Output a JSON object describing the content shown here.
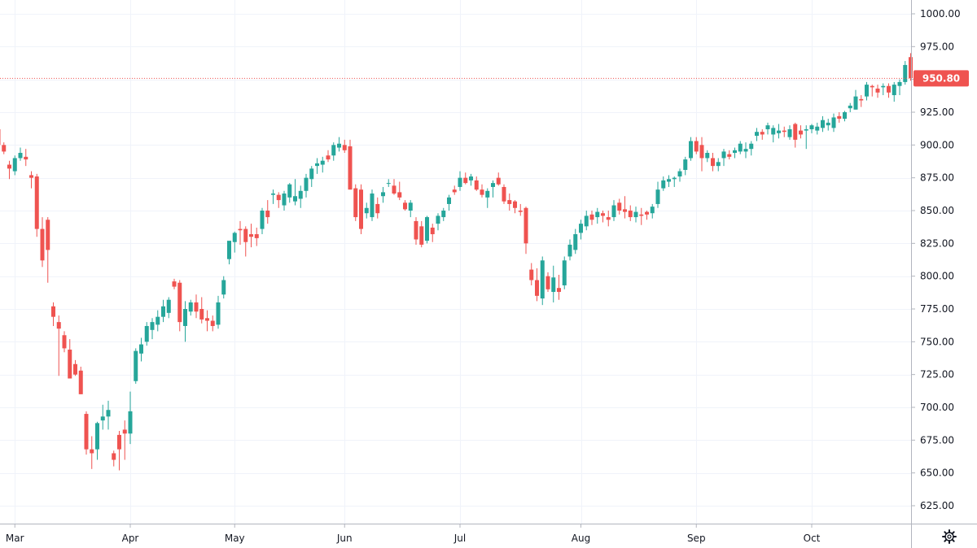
{
  "chart_data": {
    "type": "candlestick",
    "title": "",
    "xlabel": "",
    "ylabel": "",
    "ylim": [
      610,
      1010
    ],
    "grid": true,
    "legend": "none",
    "y_ticks": [
      625,
      650,
      675,
      700,
      725,
      750,
      775,
      800,
      825,
      850,
      875,
      900,
      925,
      950,
      975,
      1000
    ],
    "y_tick_labels": [
      "625.00",
      "650.00",
      "675.00",
      "700.00",
      "725.00",
      "750.00",
      "775.00",
      "800.00",
      "825.00",
      "850.00",
      "875.00",
      "900.00",
      "925.00",
      "950.00",
      "975.00",
      "1000.00"
    ],
    "x_ticks": [
      {
        "label": "Mar",
        "index": 3
      },
      {
        "label": "Apr",
        "index": 24
      },
      {
        "label": "May",
        "index": 43
      },
      {
        "label": "Jun",
        "index": 63
      },
      {
        "label": "Jul",
        "index": 84
      },
      {
        "label": "Aug",
        "index": 106
      },
      {
        "label": "Sep",
        "index": 127
      },
      {
        "label": "Oct",
        "index": 148
      }
    ],
    "last_price": 950.8,
    "last_price_label": "950.80",
    "series": [
      {
        "candles": [
          [
            912,
            914,
            896,
            900
          ],
          [
            900,
            902,
            893,
            895
          ],
          [
            885,
            888,
            874,
            882
          ],
          [
            880,
            892,
            877,
            890
          ],
          [
            890,
            898,
            888,
            894
          ],
          [
            891,
            897,
            884,
            889
          ],
          [
            877,
            880,
            867,
            875
          ],
          [
            876,
            878,
            830,
            836
          ],
          [
            836,
            845,
            807,
            812
          ],
          [
            843,
            845,
            795,
            820
          ],
          [
            777,
            780,
            762,
            769
          ],
          [
            765,
            770,
            724,
            760
          ],
          [
            755,
            758,
            742,
            745
          ],
          [
            744,
            752,
            722,
            722
          ],
          [
            733,
            736,
            724,
            725
          ],
          [
            728,
            731,
            710,
            710
          ],
          [
            695,
            697,
            664,
            668
          ],
          [
            668,
            678,
            653,
            665
          ],
          [
            668,
            689,
            660,
            688
          ],
          [
            690,
            702,
            683,
            693
          ],
          [
            693,
            705,
            683,
            698
          ],
          [
            665,
            667,
            655,
            660
          ],
          [
            679,
            682,
            652,
            668
          ],
          [
            683,
            690,
            660,
            680
          ],
          [
            680,
            712,
            672,
            697
          ],
          [
            720,
            745,
            718,
            743
          ],
          [
            741,
            753,
            735,
            748
          ],
          [
            750,
            765,
            747,
            762
          ],
          [
            759,
            768,
            752,
            765
          ],
          [
            763,
            774,
            758,
            769
          ],
          [
            769,
            782,
            765,
            777
          ],
          [
            772,
            784,
            768,
            782
          ],
          [
            796,
            798,
            790,
            792
          ],
          [
            795,
            797,
            758,
            765
          ],
          [
            762,
            781,
            750,
            775
          ],
          [
            773,
            782,
            770,
            780
          ],
          [
            780,
            786,
            768,
            773
          ],
          [
            775,
            784,
            764,
            767
          ],
          [
            768,
            774,
            758,
            766
          ],
          [
            766,
            770,
            758,
            762
          ],
          [
            763,
            785,
            760,
            780
          ],
          [
            786,
            800,
            783,
            797
          ],
          [
            813,
            826,
            809,
            827
          ],
          [
            826,
            834,
            818,
            833
          ],
          [
            836,
            842,
            824,
            835
          ],
          [
            836,
            838,
            815,
            826
          ],
          [
            832,
            840,
            822,
            830
          ],
          [
            832,
            837,
            823,
            829
          ],
          [
            836,
            852,
            832,
            850
          ],
          [
            850,
            858,
            840,
            845
          ],
          [
            862,
            866,
            855,
            863
          ],
          [
            862,
            864,
            852,
            858
          ],
          [
            854,
            865,
            850,
            863
          ],
          [
            860,
            871,
            856,
            870
          ],
          [
            857,
            874,
            854,
            861
          ],
          [
            859,
            869,
            852,
            865
          ],
          [
            865,
            878,
            860,
            875
          ],
          [
            874,
            884,
            868,
            882
          ],
          [
            884,
            890,
            878,
            886
          ],
          [
            885,
            891,
            879,
            888
          ],
          [
            892,
            896,
            887,
            889
          ],
          [
            892,
            902,
            888,
            900
          ],
          [
            898,
            906,
            895,
            901
          ],
          [
            900,
            904,
            894,
            896
          ],
          [
            899,
            904,
            866,
            866
          ],
          [
            867,
            870,
            842,
            845
          ],
          [
            866,
            870,
            832,
            836
          ],
          [
            848,
            856,
            844,
            852
          ],
          [
            845,
            866,
            842,
            863
          ],
          [
            855,
            860,
            844,
            848
          ],
          [
            861,
            868,
            856,
            864
          ],
          [
            871,
            874,
            868,
            871
          ],
          [
            869,
            874,
            862,
            863
          ],
          [
            864,
            872,
            858,
            860
          ],
          [
            856,
            858,
            850,
            851
          ],
          [
            850,
            858,
            845,
            856
          ],
          [
            842,
            845,
            824,
            828
          ],
          [
            838,
            842,
            822,
            824
          ],
          [
            827,
            846,
            825,
            845
          ],
          [
            837,
            840,
            826,
            832
          ],
          [
            840,
            848,
            835,
            846
          ],
          [
            845,
            852,
            842,
            850
          ],
          [
            855,
            862,
            850,
            860
          ],
          [
            866,
            869,
            862,
            864
          ],
          [
            868,
            880,
            865,
            875
          ],
          [
            875,
            879,
            870,
            871
          ],
          [
            873,
            878,
            869,
            876
          ],
          [
            873,
            876,
            865,
            866
          ],
          [
            866,
            870,
            860,
            862
          ],
          [
            860,
            867,
            852,
            865
          ],
          [
            868,
            873,
            860,
            871
          ],
          [
            875,
            879,
            869,
            870
          ],
          [
            868,
            870,
            855,
            857
          ],
          [
            858,
            863,
            850,
            855
          ],
          [
            857,
            858,
            848,
            852
          ],
          [
            850,
            855,
            846,
            849
          ],
          [
            852,
            853,
            817,
            825
          ],
          [
            805,
            810,
            793,
            797
          ],
          [
            797,
            806,
            781,
            785
          ],
          [
            783,
            815,
            778,
            812
          ],
          [
            800,
            803,
            788,
            790
          ],
          [
            788,
            808,
            780,
            799
          ],
          [
            791,
            801,
            782,
            788
          ],
          [
            793,
            815,
            790,
            812
          ],
          [
            815,
            828,
            812,
            824
          ],
          [
            820,
            836,
            817,
            832
          ],
          [
            833,
            843,
            828,
            840
          ],
          [
            838,
            850,
            835,
            846
          ],
          [
            847,
            850,
            839,
            843
          ],
          [
            845,
            852,
            840,
            849
          ],
          [
            848,
            850,
            841,
            846
          ],
          [
            845,
            850,
            838,
            843
          ],
          [
            845,
            858,
            842,
            854
          ],
          [
            856,
            859,
            847,
            850
          ],
          [
            851,
            861,
            844,
            849
          ],
          [
            850,
            854,
            842,
            845
          ],
          [
            845,
            853,
            841,
            849
          ],
          [
            847,
            852,
            839,
            846
          ],
          [
            849,
            850,
            843,
            847
          ],
          [
            848,
            855,
            844,
            853
          ],
          [
            855,
            872,
            852,
            866
          ],
          [
            867,
            876,
            865,
            873
          ],
          [
            872,
            877,
            868,
            874
          ],
          [
            874,
            876,
            868,
            875
          ],
          [
            876,
            882,
            872,
            880
          ],
          [
            881,
            891,
            877,
            889
          ],
          [
            890,
            906,
            888,
            903
          ],
          [
            903,
            906,
            893,
            895
          ],
          [
            900,
            906,
            880,
            890
          ],
          [
            890,
            896,
            887,
            894
          ],
          [
            890,
            894,
            880,
            884
          ],
          [
            884,
            890,
            880,
            887
          ],
          [
            890,
            897,
            884,
            895
          ],
          [
            893,
            896,
            889,
            891
          ],
          [
            894,
            898,
            890,
            896
          ],
          [
            895,
            903,
            893,
            901
          ],
          [
            895,
            902,
            890,
            897
          ],
          [
            897,
            903,
            892,
            901
          ],
          [
            907,
            913,
            903,
            910
          ],
          [
            910,
            912,
            904,
            908
          ],
          [
            912,
            917,
            908,
            915
          ],
          [
            908,
            915,
            902,
            913
          ],
          [
            909,
            916,
            905,
            911
          ],
          [
            911,
            914,
            906,
            910
          ],
          [
            906,
            915,
            904,
            912
          ],
          [
            916,
            917,
            898,
            904
          ],
          [
            911,
            915,
            905,
            908
          ],
          [
            911,
            915,
            897,
            912
          ],
          [
            912,
            916,
            909,
            915
          ],
          [
            911,
            917,
            908,
            914
          ],
          [
            913,
            922,
            910,
            919
          ],
          [
            915,
            920,
            911,
            917
          ],
          [
            913,
            924,
            910,
            921
          ],
          [
            922,
            925,
            917,
            920
          ],
          [
            920,
            926,
            918,
            925
          ],
          [
            928,
            932,
            925,
            930
          ],
          [
            927,
            942,
            927,
            937
          ],
          [
            935,
            938,
            929,
            934
          ],
          [
            937,
            948,
            934,
            946
          ],
          [
            945,
            946,
            937,
            944
          ],
          [
            943,
            946,
            936,
            940
          ],
          [
            944,
            947,
            938,
            945
          ],
          [
            945,
            947,
            936,
            940
          ],
          [
            938,
            948,
            933,
            946
          ],
          [
            945,
            950,
            938,
            948
          ],
          [
            948,
            964,
            946,
            961
          ],
          [
            967,
            970,
            949,
            951
          ]
        ]
      }
    ]
  },
  "ui": {
    "settings_icon": "gear-icon",
    "colors": {
      "up": "#26a69a",
      "down": "#ef5350",
      "grid": "#f0f3fa",
      "axis_line": "#b2b5be",
      "text": "#131722",
      "price_line": "#ef5350",
      "price_tag_bg": "#ef5350"
    }
  }
}
